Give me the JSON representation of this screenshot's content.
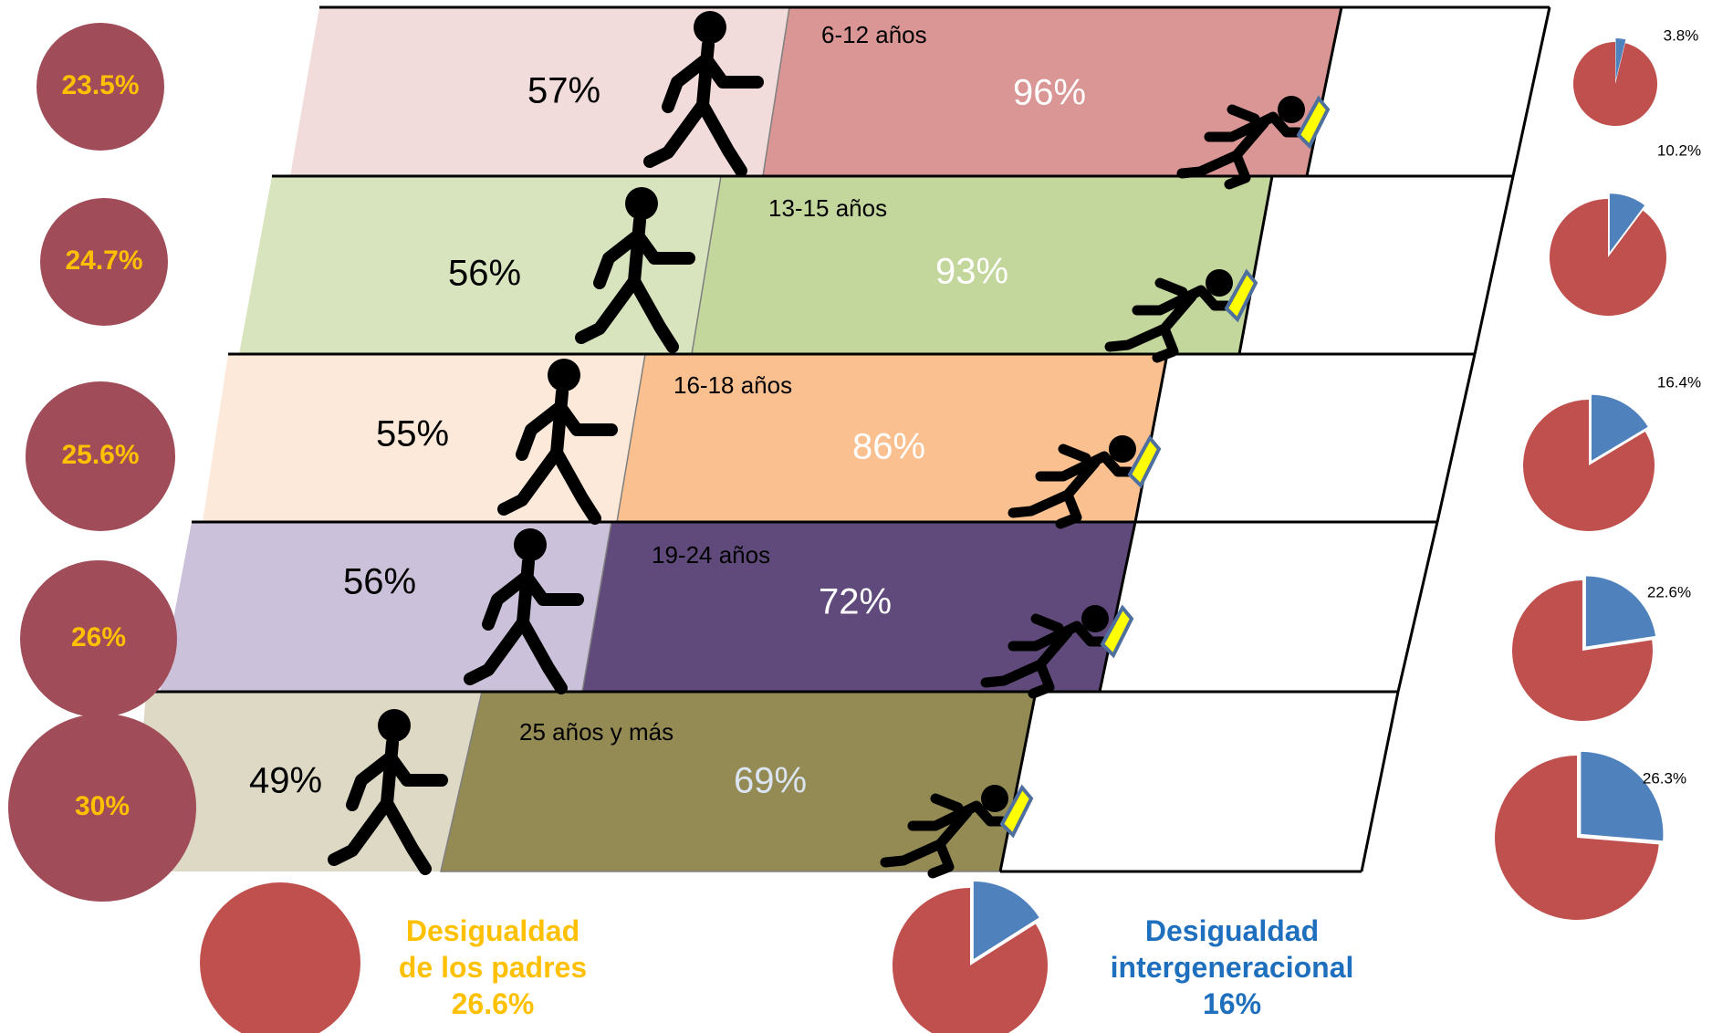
{
  "colors": {
    "circle": "#a04c59",
    "circle_text": "#ffc000",
    "pie_red": "#c0504d",
    "pie_blue": "#4f81bd",
    "parents_text": "#ffc000",
    "inter_text": "#1f6fbf",
    "outline": "#000000",
    "baton": "#ffff00",
    "baton_edge": "#4f6f9f"
  },
  "legend": {
    "parents": {
      "line1": "Desigualdad",
      "line2": "de los padres",
      "value": "26.6%"
    },
    "intergenerational": {
      "line1": "Desigualdad",
      "line2": "intergeneracional",
      "value": "16%"
    }
  },
  "chart_data": {
    "type": "table",
    "categories": [
      "6-12 años",
      "13-15 años",
      "16-18 años",
      "19-24 años",
      "25 años y más"
    ],
    "series": [
      {
        "values": [
          "23.5%",
          "24.7%",
          "25.6%",
          "26%",
          "30%"
        ]
      },
      {
        "values": [
          "57%",
          "56%",
          "55%",
          "56%",
          "49%"
        ]
      },
      {
        "values": [
          "96%",
          "93%",
          "86%",
          "72%",
          "69%"
        ]
      },
      {
        "values": [
          "3.8%",
          "10.2%",
          "16.4%",
          "22.6%",
          "26.3%"
        ]
      }
    ],
    "raw": {
      "circle": [
        23.5,
        24.7,
        25.6,
        26,
        30
      ],
      "parents": [
        57,
        56,
        55,
        56,
        49
      ],
      "children": [
        96,
        93,
        86,
        72,
        69
      ],
      "pie": [
        3.8,
        10.2,
        16.4,
        22.6,
        26.3
      ],
      "bottom_pie": 16
    },
    "row_colors": {
      "light": [
        "#f2dcdb",
        "#d7e4bd",
        "#fde9d9",
        "#ccc1da",
        "#ddd9c4"
      ],
      "dark": [
        "#d99694",
        "#c3d69b",
        "#fac090",
        "#604a7b",
        "#948a54"
      ],
      "value_text": [
        "#ffffff",
        "#ffffff",
        "#ffffff",
        "#ffffff",
        "#dbe5f1"
      ]
    }
  }
}
